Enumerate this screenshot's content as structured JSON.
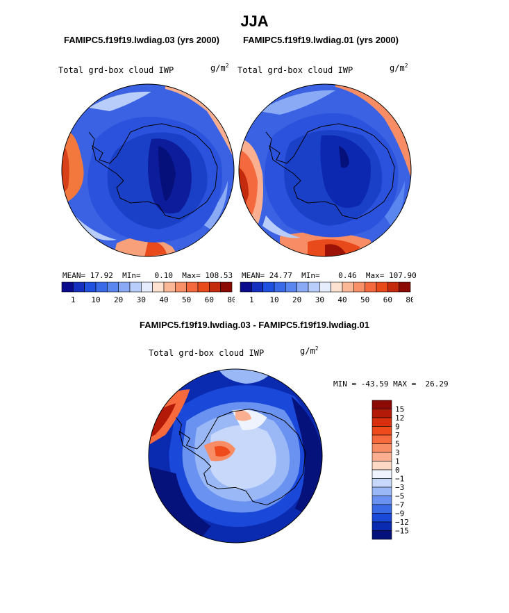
{
  "season": "JJA",
  "panels": [
    {
      "case_title": "FAMIPC5.f19f19.lwdiag.03 (yrs 2000)",
      "variable": "Total grd-box cloud IWP",
      "units": "g/m",
      "units_exp": "2",
      "stats": {
        "mean_label": "MEAN=",
        "mean": "17.92",
        "min_label": "MIn=",
        "min": "0.10",
        "max_label": "Max=",
        "max": "108.53"
      }
    },
    {
      "case_title": "FAMIPC5.f19f19.lwdiag.01 (yrs 2000)",
      "variable": "Total grd-box cloud IWP",
      "units": "g/m",
      "units_exp": "2",
      "stats": {
        "mean_label": "MEAN=",
        "mean": "24.77",
        "min_label": "MIn=",
        "min": "0.46",
        "max_label": "Max=",
        "max": "107.90"
      }
    }
  ],
  "field_colorbar": {
    "labels": [
      "1",
      "10",
      "20",
      "30",
      "40",
      "50",
      "60",
      "80"
    ],
    "colors": [
      "#0a0a8c",
      "#1530c0",
      "#2050e0",
      "#3a6ae8",
      "#5a86f0",
      "#8aaaf6",
      "#b8cdfa",
      "#e6eefe",
      "#fde2d2",
      "#fbb896",
      "#f89068",
      "#f46a3e",
      "#e84a1c",
      "#c42a0c",
      "#8c0a04"
    ]
  },
  "diff_title": "FAMIPC5.f19f19.lwdiag.03 - FAMIPC5.f19f19.lwdiag.01",
  "diff_panel": {
    "variable": "Total grd-box cloud IWP",
    "units": "g/m",
    "units_exp": "2",
    "min_max": "MIN = -43.59 MAX =  26.29"
  },
  "diff_colorbar": {
    "labels": [
      "15",
      "12",
      "9",
      "7",
      "5",
      "3",
      "1",
      "0",
      "−1",
      "−3",
      "−5",
      "−7",
      "−9",
      "−12",
      "−15"
    ],
    "colors": [
      "#8c0a04",
      "#b41a08",
      "#d8300e",
      "#ee4a1c",
      "#f66a3e",
      "#f88c64",
      "#fab090",
      "#fdd8c4",
      "#eef3fe",
      "#c8d8fb",
      "#9ab8f6",
      "#6a92f0",
      "#3a6ae6",
      "#1a48d8",
      "#0a2ab0",
      "#06127c"
    ]
  },
  "colors": {
    "land_outline": "#000000",
    "base_blue": "#3a64e4"
  }
}
